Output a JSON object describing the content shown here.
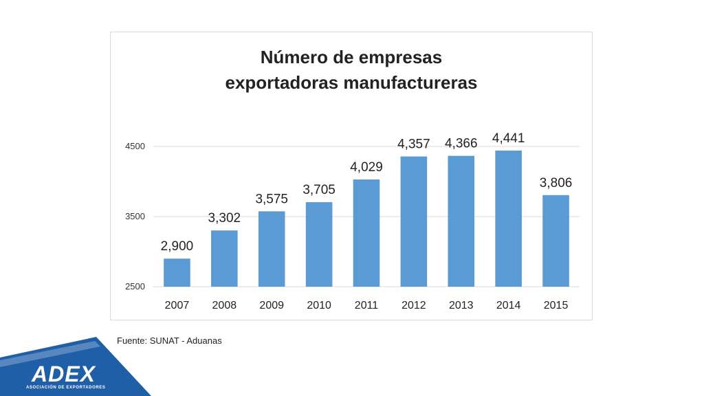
{
  "chart_data": {
    "type": "bar",
    "title": "Número de empresas exportadoras manufactureras",
    "categories": [
      "2007",
      "2008",
      "2009",
      "2010",
      "2011",
      "2012",
      "2013",
      "2014",
      "2015"
    ],
    "values": [
      2900,
      3302,
      3575,
      3705,
      4029,
      4357,
      4366,
      4441,
      3806
    ],
    "value_labels": [
      "2,900",
      "3,302",
      "3,575",
      "3,705",
      "4,029",
      "4,357",
      "4,366",
      "4,441",
      "3,806"
    ],
    "yticks": [
      "2500",
      "3500",
      "4500"
    ],
    "ylim": [
      2500,
      4500
    ],
    "grid": true,
    "bar_color": "#5b9bd5"
  },
  "source": "Fuente: SUNAT - Aduanas",
  "logo": {
    "text": "ADEX",
    "subtitle": "ASOCIACIÓN DE EXPORTADORES",
    "band_color": "#1f5fa8"
  }
}
